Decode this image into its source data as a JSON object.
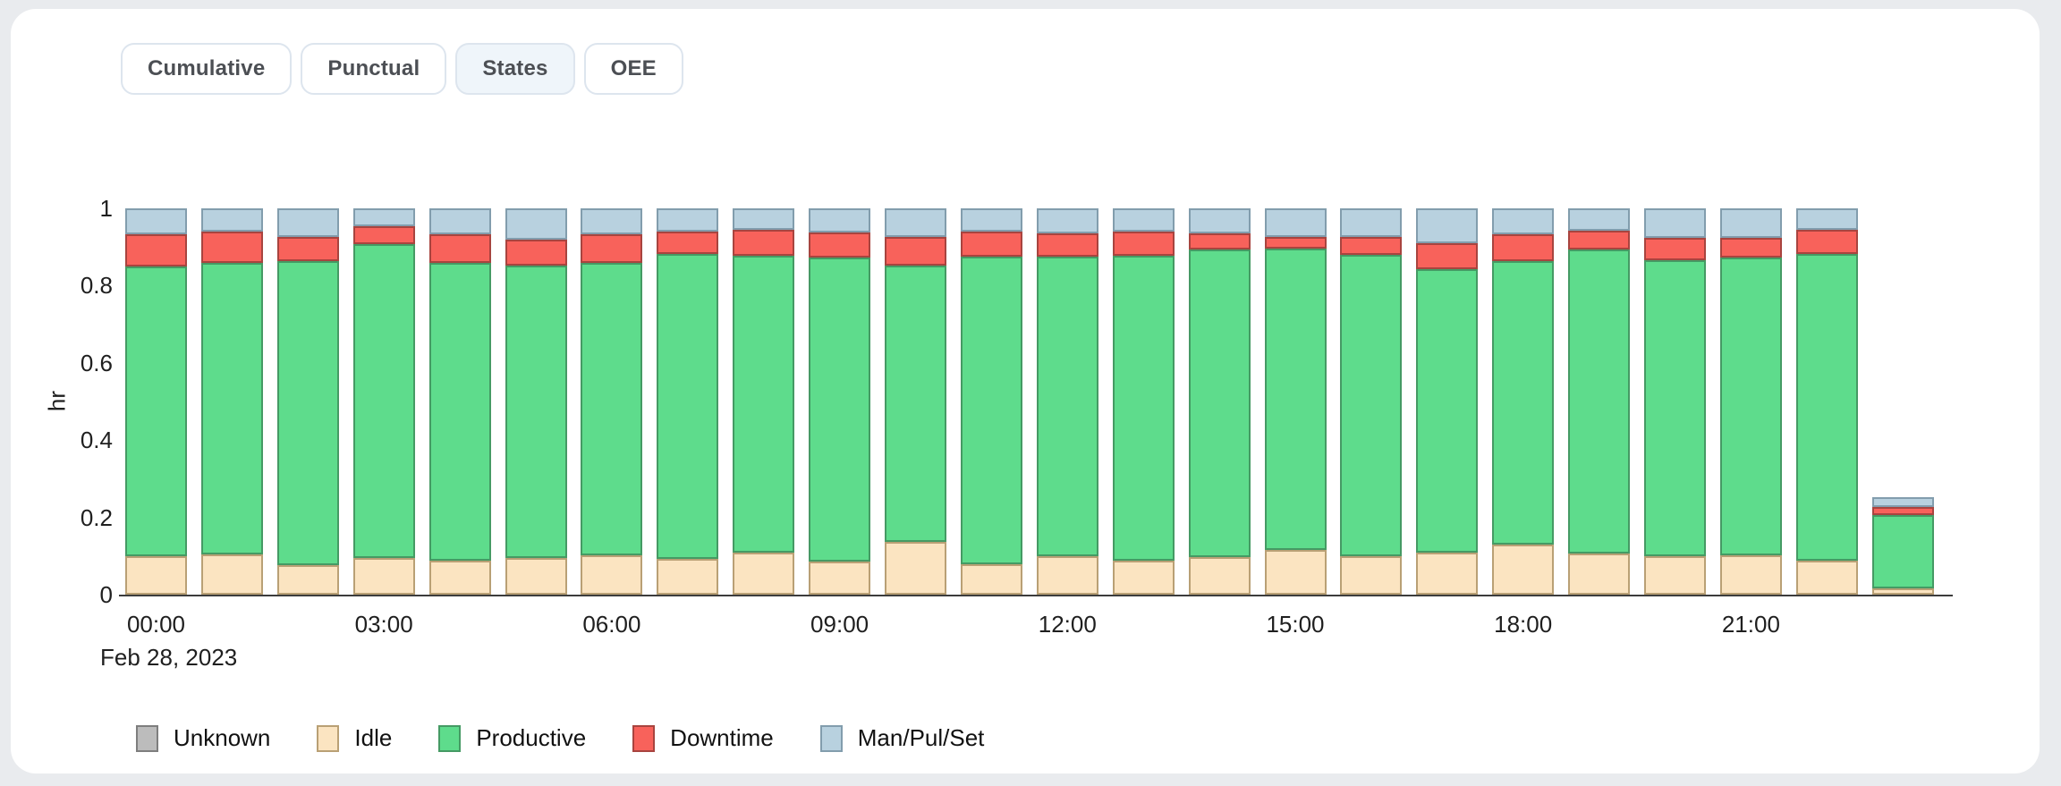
{
  "page": {
    "background_color": "#e9ebee",
    "card_color": "#ffffff"
  },
  "tabs": [
    {
      "label": "Cumulative",
      "active": false
    },
    {
      "label": "Punctual",
      "active": false
    },
    {
      "label": "States",
      "active": true
    },
    {
      "label": "OEE",
      "active": false
    }
  ],
  "chart_data": {
    "type": "bar",
    "stacked": true,
    "ylabel": "hr",
    "ylim": [
      0,
      1
    ],
    "yticks": [
      "0",
      "0.2",
      "0.4",
      "0.6",
      "0.8",
      "1"
    ],
    "ytick_values": [
      0,
      0.2,
      0.4,
      0.6,
      0.8,
      1
    ],
    "grid": false,
    "legend_position": "bottom-left",
    "date_label": "Feb 28, 2023",
    "x_tick_labels": [
      "00:00",
      "03:00",
      "06:00",
      "09:00",
      "12:00",
      "15:00",
      "18:00",
      "21:00"
    ],
    "x_tick_every": 3,
    "categories": [
      "00:00",
      "01:00",
      "02:00",
      "03:00",
      "04:00",
      "05:00",
      "06:00",
      "07:00",
      "08:00",
      "09:00",
      "10:00",
      "11:00",
      "12:00",
      "13:00",
      "14:00",
      "15:00",
      "16:00",
      "17:00",
      "18:00",
      "19:00",
      "20:00",
      "21:00",
      "22:00",
      "23:00"
    ],
    "series": [
      {
        "name": "Unknown",
        "color": "#bcbcbc",
        "border": "#7e7e7e",
        "values": [
          0,
          0,
          0,
          0,
          0,
          0,
          0,
          0,
          0,
          0,
          0,
          0,
          0,
          0,
          0,
          0,
          0,
          0,
          0,
          0,
          0,
          0,
          0,
          0
        ]
      },
      {
        "name": "Idle",
        "color": "#fbe4c1",
        "border": "#b9a075",
        "values": [
          0.1,
          0.104,
          0.077,
          0.094,
          0.089,
          0.094,
          0.102,
          0.093,
          0.11,
          0.085,
          0.137,
          0.079,
          0.1,
          0.089,
          0.097,
          0.116,
          0.099,
          0.108,
          0.129,
          0.106,
          0.099,
          0.102,
          0.087,
          0.017
        ]
      },
      {
        "name": "Productive",
        "color": "#5edc8c",
        "border": "#459a64",
        "values": [
          0.749,
          0.755,
          0.787,
          0.814,
          0.771,
          0.759,
          0.757,
          0.788,
          0.768,
          0.788,
          0.715,
          0.797,
          0.776,
          0.789,
          0.796,
          0.779,
          0.781,
          0.735,
          0.735,
          0.787,
          0.767,
          0.771,
          0.794,
          0.189
        ]
      },
      {
        "name": "Downtime",
        "color": "#f8625b",
        "border": "#a8443f",
        "values": [
          0.084,
          0.082,
          0.063,
          0.045,
          0.073,
          0.067,
          0.074,
          0.06,
          0.067,
          0.064,
          0.075,
          0.065,
          0.06,
          0.063,
          0.042,
          0.032,
          0.046,
          0.067,
          0.068,
          0.05,
          0.058,
          0.051,
          0.063,
          0.022
        ]
      },
      {
        "name": "Man/Pul/Set",
        "color": "#b8d1df",
        "border": "#829dad",
        "values": [
          0.067,
          0.059,
          0.073,
          0.047,
          0.067,
          0.08,
          0.067,
          0.059,
          0.055,
          0.063,
          0.073,
          0.059,
          0.064,
          0.059,
          0.065,
          0.073,
          0.074,
          0.09,
          0.068,
          0.057,
          0.076,
          0.076,
          0.056,
          0.024
        ]
      }
    ]
  }
}
